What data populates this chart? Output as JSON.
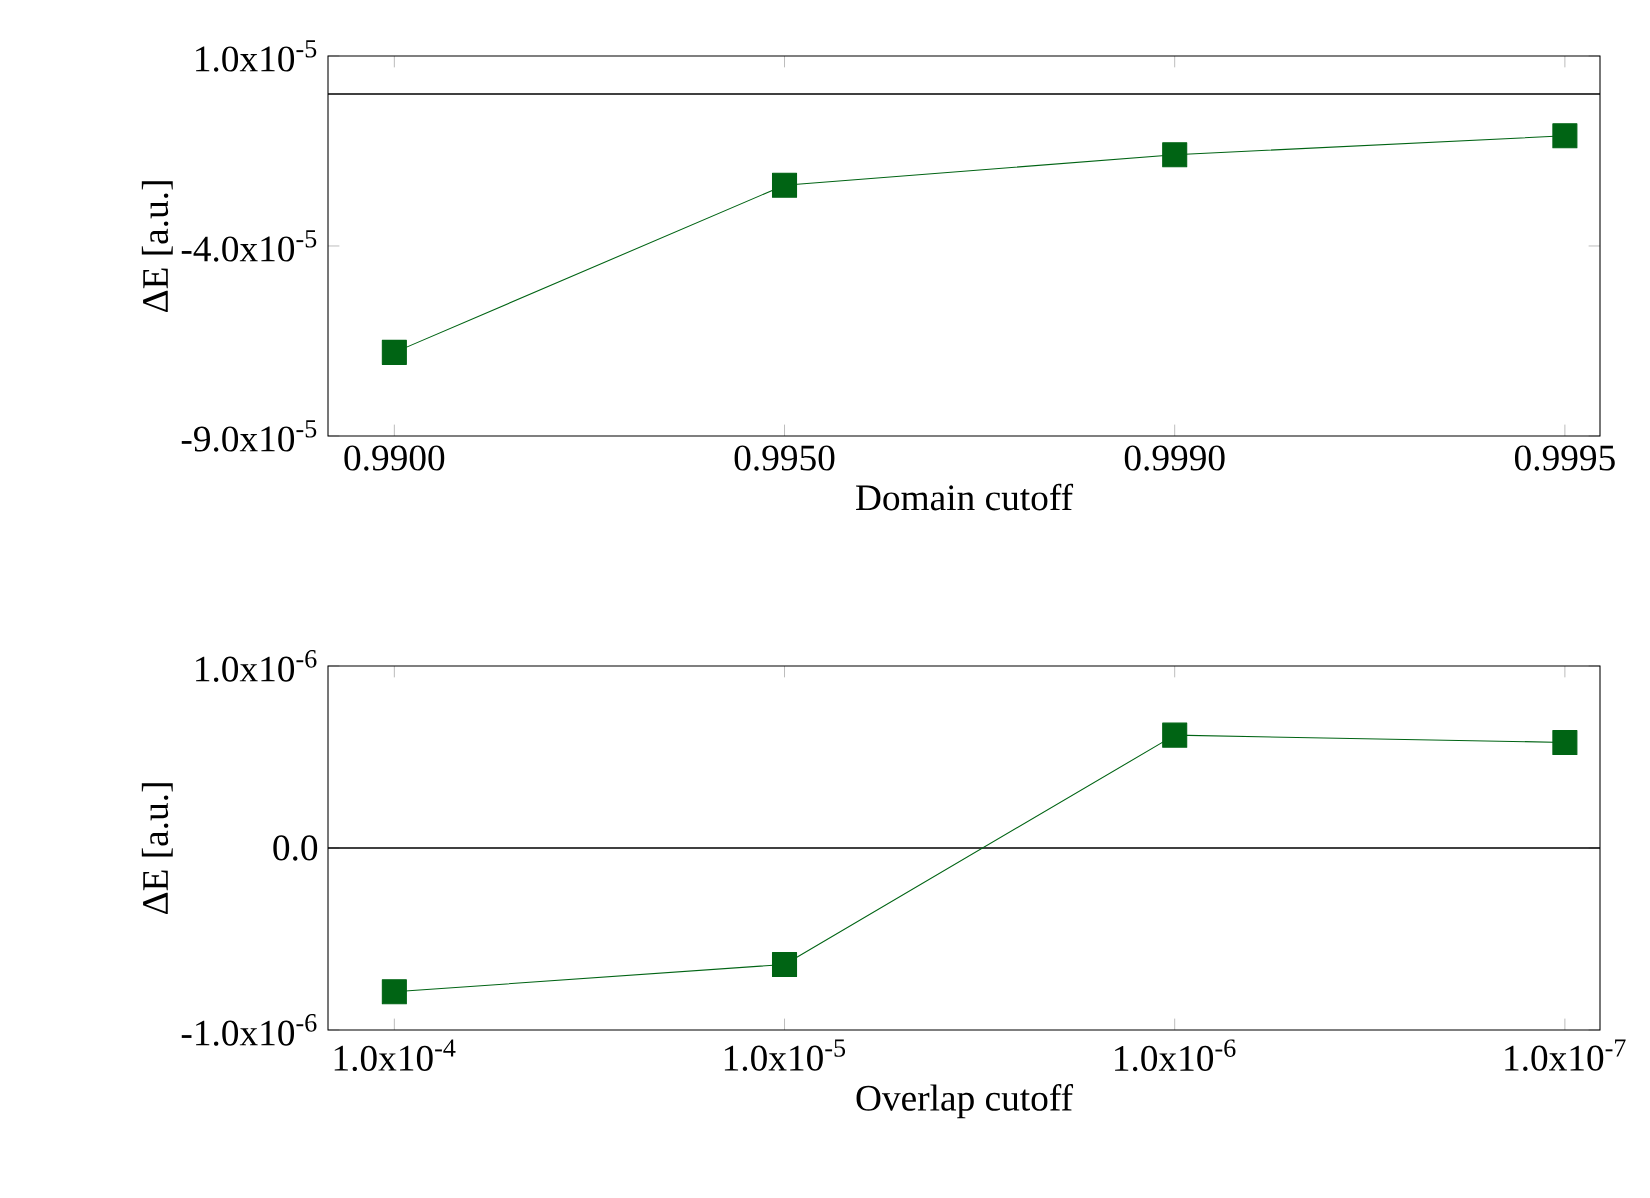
{
  "chart_data": [
    {
      "type": "line",
      "categories": [
        "0.9900",
        "0.9950",
        "0.9990",
        "0.9995"
      ],
      "series": [
        {
          "color": "#006414",
          "values": [
            -6.8e-05,
            -2.4e-05,
            -1.6e-05,
            -1.1e-05
          ]
        }
      ],
      "xlabel": "Domain  cutoff",
      "ylabel": "ΔE [a.u.]",
      "ylim": [
        -9e-05,
        1e-05
      ],
      "yticks": [
        {
          "value": -9e-05,
          "label": "-9.0x10$^{-5}$"
        },
        {
          "value": -4e-05,
          "label": "-4.0x10$^{-5}$"
        },
        {
          "value": 1e-05,
          "label": "1.0x10$^{-5}$"
        }
      ],
      "ref_lines": [
        {
          "axis": "y",
          "value": 0,
          "color": "#000000"
        }
      ],
      "marker": "square"
    },
    {
      "type": "line",
      "categories": [
        "1.0x10$^{-4}$",
        "1.0x10$^{-5}$",
        "1.0x10$^{-6}$",
        "1.0x10$^{-7}$"
      ],
      "series": [
        {
          "color": "#006414",
          "values": [
            -7.9e-07,
            -6.4e-07,
            6.2e-07,
            5.8e-07
          ]
        }
      ],
      "xlabel": "Overlap cutoff",
      "ylabel": "ΔE [a.u.]",
      "ylim": [
        -1e-06,
        1e-06
      ],
      "yticks": [
        {
          "value": -1e-06,
          "label": "-1.0x10$^{-6}$"
        },
        {
          "value": 0,
          "label": "0.0"
        },
        {
          "value": 1e-06,
          "label": "1.0x10$^{-6}$"
        }
      ],
      "ref_lines": [
        {
          "axis": "y",
          "value": 0,
          "color": "#000000"
        }
      ],
      "marker": "square"
    }
  ]
}
